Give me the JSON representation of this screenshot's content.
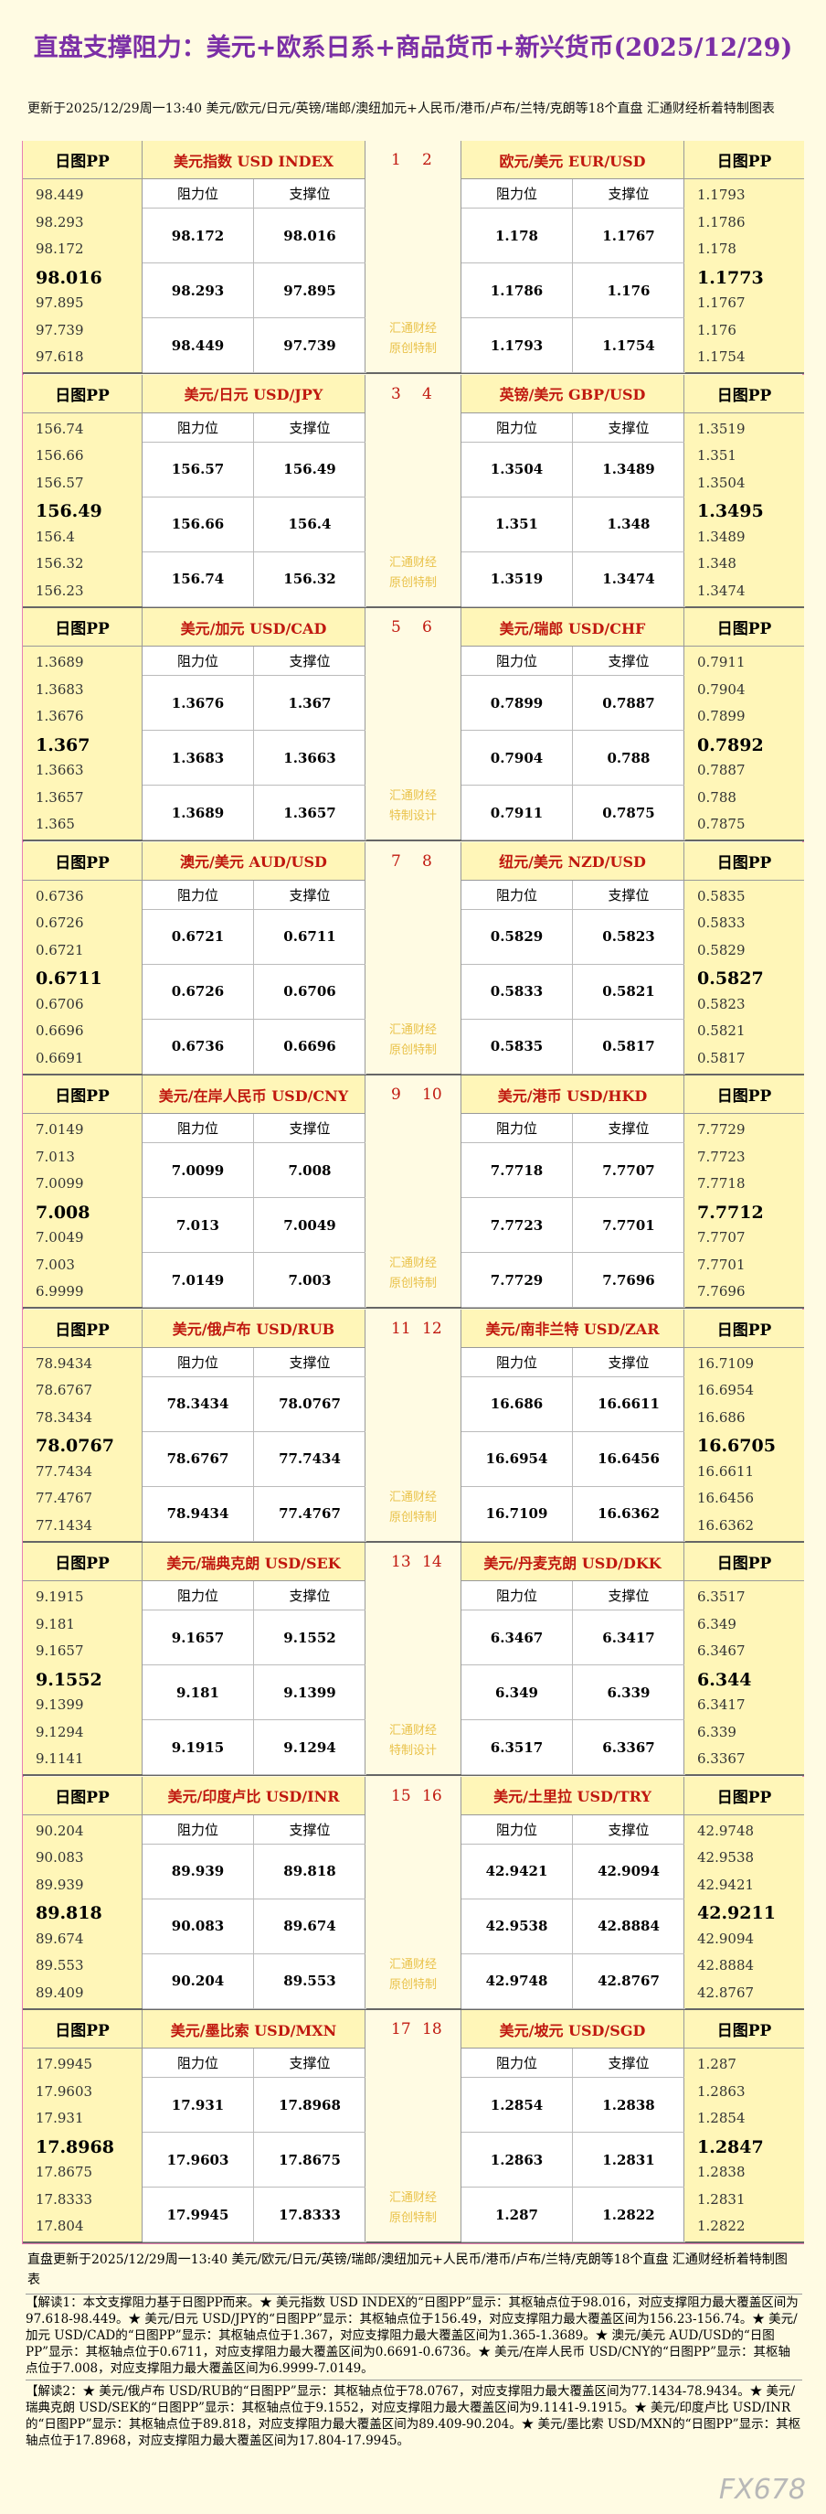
{
  "header": {
    "title": "直盘支撑阻力：美元+欧系日系+商品货币+新兴货币(2025/12/29)",
    "subtitle": "更新于2025/12/29周一13:40 美元/欧元/日元/英镑/瑞郎/澳纽加元+人民币/港币/卢布/兰特/克朗等18个直盘 汇通财经析着特制图表"
  },
  "labels": {
    "pp": "日图PP",
    "resistance": "阻力位",
    "support": "支撑位"
  },
  "blocks": [
    {
      "watermark": "汇通财经原创特制",
      "pairs": [
        {
          "index": 1,
          "name": "美元指数 USD INDEX",
          "pp": [
            98.449,
            98.293,
            98.172,
            98.016,
            97.895,
            97.739,
            97.618
          ],
          "rows": [
            [
              98.172,
              98.016
            ],
            [
              98.293,
              97.895
            ],
            [
              98.449,
              97.739
            ]
          ]
        },
        {
          "index": 2,
          "name": "欧元/美元 EUR/USD",
          "pp": [
            1.1793,
            1.1786,
            1.178,
            1.1773,
            1.1767,
            1.176,
            1.1754
          ],
          "rows": [
            [
              1.178,
              1.1767
            ],
            [
              1.1786,
              1.176
            ],
            [
              1.1793,
              1.1754
            ]
          ]
        }
      ]
    },
    {
      "watermark": "汇通财经原创特制",
      "pairs": [
        {
          "index": 3,
          "name": "美元/日元 USD/JPY",
          "pp": [
            156.74,
            156.66,
            156.57,
            156.49,
            156.4,
            156.32,
            156.23
          ],
          "rows": [
            [
              156.57,
              156.49
            ],
            [
              156.66,
              156.4
            ],
            [
              156.74,
              156.32
            ]
          ]
        },
        {
          "index": 4,
          "name": "英镑/美元 GBP/USD",
          "pp": [
            1.3519,
            1.351,
            1.3504,
            1.3495,
            1.3489,
            1.348,
            1.3474
          ],
          "rows": [
            [
              1.3504,
              1.3489
            ],
            [
              1.351,
              1.348
            ],
            [
              1.3519,
              1.3474
            ]
          ]
        }
      ]
    },
    {
      "watermark": "汇通财经特制设计",
      "pairs": [
        {
          "index": 5,
          "name": "美元/加元 USD/CAD",
          "pp": [
            1.3689,
            1.3683,
            1.3676,
            1.367,
            1.3663,
            1.3657,
            1.365
          ],
          "rows": [
            [
              1.3676,
              1.367
            ],
            [
              1.3683,
              1.3663
            ],
            [
              1.3689,
              1.3657
            ]
          ]
        },
        {
          "index": 6,
          "name": "美元/瑞郎 USD/CHF",
          "pp": [
            0.7911,
            0.7904,
            0.7899,
            0.7892,
            0.7887,
            0.788,
            0.7875
          ],
          "rows": [
            [
              0.7899,
              0.7887
            ],
            [
              0.7904,
              0.788
            ],
            [
              0.7911,
              0.7875
            ]
          ]
        }
      ]
    },
    {
      "watermark": "汇通财经原创特制",
      "pairs": [
        {
          "index": 7,
          "name": "澳元/美元 AUD/USD",
          "pp": [
            0.6736,
            0.6726,
            0.6721,
            0.6711,
            0.6706,
            0.6696,
            0.6691
          ],
          "rows": [
            [
              0.6721,
              0.6711
            ],
            [
              0.6726,
              0.6706
            ],
            [
              0.6736,
              0.6696
            ]
          ]
        },
        {
          "index": 8,
          "name": "纽元/美元 NZD/USD",
          "pp": [
            0.5835,
            0.5833,
            0.5829,
            0.5827,
            0.5823,
            0.5821,
            0.5817
          ],
          "rows": [
            [
              0.5829,
              0.5823
            ],
            [
              0.5833,
              0.5821
            ],
            [
              0.5835,
              0.5817
            ]
          ]
        }
      ]
    },
    {
      "watermark": "汇通财经原创特制",
      "pairs": [
        {
          "index": 9,
          "name": "美元/在岸人民币 USD/CNY",
          "pp": [
            7.0149,
            7.013,
            7.0099,
            7.008,
            7.0049,
            7.003,
            6.9999
          ],
          "rows": [
            [
              7.0099,
              7.008
            ],
            [
              7.013,
              7.0049
            ],
            [
              7.0149,
              7.003
            ]
          ]
        },
        {
          "index": 10,
          "name": "美元/港币 USD/HKD",
          "pp": [
            7.7729,
            7.7723,
            7.7718,
            7.7712,
            7.7707,
            7.7701,
            7.7696
          ],
          "rows": [
            [
              7.7718,
              7.7707
            ],
            [
              7.7723,
              7.7701
            ],
            [
              7.7729,
              7.7696
            ]
          ]
        }
      ]
    },
    {
      "watermark": "汇通财经原创特制",
      "pairs": [
        {
          "index": 11,
          "name": "美元/俄卢布 USD/RUB",
          "pp": [
            78.9434,
            78.6767,
            78.3434,
            78.0767,
            77.7434,
            77.4767,
            77.1434
          ],
          "rows": [
            [
              78.3434,
              78.0767
            ],
            [
              78.6767,
              77.7434
            ],
            [
              78.9434,
              77.4767
            ]
          ]
        },
        {
          "index": 12,
          "name": "美元/南非兰特 USD/ZAR",
          "pp": [
            16.7109,
            16.6954,
            16.686,
            16.6705,
            16.6611,
            16.6456,
            16.6362
          ],
          "rows": [
            [
              16.686,
              16.6611
            ],
            [
              16.6954,
              16.6456
            ],
            [
              16.7109,
              16.6362
            ]
          ]
        }
      ]
    },
    {
      "watermark": "汇通财经特制设计",
      "pairs": [
        {
          "index": 13,
          "name": "美元/瑞典克朗 USD/SEK",
          "pp": [
            9.1915,
            9.181,
            9.1657,
            9.1552,
            9.1399,
            9.1294,
            9.1141
          ],
          "rows": [
            [
              9.1657,
              9.1552
            ],
            [
              9.181,
              9.1399
            ],
            [
              9.1915,
              9.1294
            ]
          ]
        },
        {
          "index": 14,
          "name": "美元/丹麦克朗 USD/DKK",
          "pp": [
            6.3517,
            6.349,
            6.3467,
            6.344,
            6.3417,
            6.339,
            6.3367
          ],
          "rows": [
            [
              6.3467,
              6.3417
            ],
            [
              6.349,
              6.339
            ],
            [
              6.3517,
              6.3367
            ]
          ]
        }
      ]
    },
    {
      "watermark": "汇通财经原创特制",
      "pairs": [
        {
          "index": 15,
          "name": "美元/印度卢比 USD/INR",
          "pp": [
            90.204,
            90.083,
            89.939,
            89.818,
            89.674,
            89.553,
            89.409
          ],
          "rows": [
            [
              89.939,
              89.818
            ],
            [
              90.083,
              89.674
            ],
            [
              90.204,
              89.553
            ]
          ]
        },
        {
          "index": 16,
          "name": "美元/土里拉 USD/TRY",
          "pp": [
            42.9748,
            42.9538,
            42.9421,
            42.9211,
            42.9094,
            42.8884,
            42.8767
          ],
          "rows": [
            [
              42.9421,
              42.9094
            ],
            [
              42.9538,
              42.8884
            ],
            [
              42.9748,
              42.8767
            ]
          ]
        }
      ]
    },
    {
      "watermark": "汇通财经原创特制",
      "pairs": [
        {
          "index": 17,
          "name": "美元/墨比索 USD/MXN",
          "pp": [
            17.9945,
            17.9603,
            17.931,
            17.8968,
            17.8675,
            17.8333,
            17.804
          ],
          "rows": [
            [
              17.931,
              17.8968
            ],
            [
              17.9603,
              17.8675
            ],
            [
              17.9945,
              17.8333
            ]
          ]
        },
        {
          "index": 18,
          "name": "美元/坡元 USD/SGD",
          "pp": [
            1.287,
            1.2863,
            1.2854,
            1.2847,
            1.2838,
            1.2831,
            1.2822
          ],
          "rows": [
            [
              1.2854,
              1.2838
            ],
            [
              1.2863,
              1.2831
            ],
            [
              1.287,
              1.2822
            ]
          ]
        }
      ]
    }
  ],
  "footer": {
    "update": "直盘更新于2025/12/29周一13:40 美元/欧元/日元/英镑/瑞郎/澳纽加元+人民币/港币/卢布/兰特/克朗等18个直盘 汇通财经析着特制图表",
    "notes": [
      "【解读1：本文支撑阻力基于日图PP而来。★ 美元指数 USD INDEX的“日图PP”显示：其枢轴点位于98.016，对应支撑阻力最大覆盖区间为97.618-98.449。★ 美元/日元 USD/JPY的“日图PP”显示：其枢轴点位于156.49，对应支撑阻力最大覆盖区间为156.23-156.74。★ 美元/加元 USD/CAD的“日图PP”显示：其枢轴点位于1.367，对应支撑阻力最大覆盖区间为1.365-1.3689。★ 澳元/美元 AUD/USD的“日图PP”显示：其枢轴点位于0.6711，对应支撑阻力最大覆盖区间为0.6691-0.6736。★ 美元/在岸人民币 USD/CNY的“日图PP”显示：其枢轴点位于7.008，对应支撑阻力最大覆盖区间为6.9999-7.0149。",
      "【解读2：★ 美元/俄卢布 USD/RUB的“日图PP”显示：其枢轴点位于78.0767，对应支撑阻力最大覆盖区间为77.1434-78.9434。★ 美元/瑞典克朗 USD/SEK的“日图PP”显示：其枢轴点位于9.1552，对应支撑阻力最大覆盖区间为9.1141-9.1915。★ 美元/印度卢比 USD/INR的“日图PP”显示：其枢轴点位于89.818，对应支撑阻力最大覆盖区间为89.409-90.204。★ 美元/墨比索 USD/MXN的“日图PP”显示：其枢轴点位于17.8968，对应支撑阻力最大覆盖区间为17.804-17.9945。"
    ],
    "logo": "FX678"
  }
}
